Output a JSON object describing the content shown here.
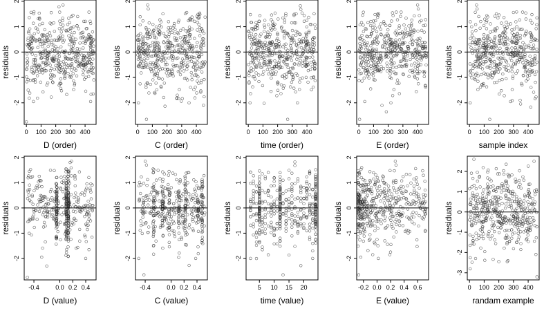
{
  "ink_color": "#000000",
  "point_color": "#333333",
  "chart_data": [
    {
      "type": "scatter",
      "xlabel": "D (order)",
      "ylabel": "residuals",
      "xlim": [
        -15,
        475
      ],
      "ylim": [
        -2.85,
        2.05
      ],
      "xticks": [
        0,
        100,
        200,
        300,
        400
      ],
      "xticklabels": [
        "0",
        "100",
        "200",
        "300",
        "400"
      ],
      "yticks": [
        -2,
        -1,
        0,
        1,
        2
      ],
      "yticklabels": [
        "-2",
        "-1",
        "0",
        "1",
        "2"
      ],
      "hline": 0,
      "x_kind": "uniform",
      "x_range": [
        0,
        460
      ],
      "n_points": 450,
      "sd": 0.72,
      "seed": 11,
      "points": [
        {
          "x": 0,
          "y": -2.75
        },
        {
          "x": 48,
          "y": -1.95
        },
        {
          "x": 222,
          "y": 1.78
        },
        {
          "x": 250,
          "y": 1.85
        },
        {
          "x": 328,
          "y": -1.3
        },
        {
          "x": 438,
          "y": -1.95
        },
        {
          "x": 455,
          "y": -1.65
        },
        {
          "x": 12,
          "y": -1.5
        },
        {
          "x": 90,
          "y": 1.3
        }
      ]
    },
    {
      "type": "scatter",
      "xlabel": "C (order)",
      "ylabel": "residuals",
      "xlim": [
        -15,
        475
      ],
      "ylim": [
        -2.85,
        2.05
      ],
      "xticks": [
        0,
        100,
        200,
        300,
        400
      ],
      "xticklabels": [
        "0",
        "100",
        "200",
        "300",
        "400"
      ],
      "yticks": [
        -2,
        -1,
        0,
        1,
        2
      ],
      "yticklabels": [
        "-2",
        "-1",
        "0",
        "1",
        "2"
      ],
      "hline": 0,
      "x_kind": "uniform",
      "x_range": [
        0,
        460
      ],
      "n_points": 450,
      "sd": 0.72,
      "seed": 23,
      "points": [
        {
          "x": 5,
          "y": -2.0
        },
        {
          "x": 60,
          "y": -2.65
        },
        {
          "x": 68,
          "y": 1.85
        },
        {
          "x": 72,
          "y": 1.7
        },
        {
          "x": 350,
          "y": -2.0
        },
        {
          "x": 270,
          "y": -1.7
        }
      ]
    },
    {
      "type": "scatter",
      "xlabel": "time (order)",
      "ylabel": "residuals",
      "xlim": [
        -15,
        475
      ],
      "ylim": [
        -2.85,
        2.05
      ],
      "xticks": [
        0,
        100,
        200,
        300,
        400
      ],
      "xticklabels": [
        "0",
        "100",
        "200",
        "300",
        "400"
      ],
      "yticks": [
        -2,
        -1,
        0,
        1,
        2
      ],
      "yticklabels": [
        "-2",
        "-1",
        "0",
        "1",
        "2"
      ],
      "hline": 0,
      "x_kind": "uniform",
      "x_range": [
        0,
        460
      ],
      "n_points": 450,
      "sd": 0.72,
      "seed": 37,
      "points": [
        {
          "x": 12,
          "y": -2.0
        },
        {
          "x": 155,
          "y": -1.55
        },
        {
          "x": 268,
          "y": -2.65
        },
        {
          "x": 335,
          "y": -2.0
        },
        {
          "x": 355,
          "y": 1.82
        },
        {
          "x": 358,
          "y": 1.68
        }
      ]
    },
    {
      "type": "scatter",
      "xlabel": "E (order)",
      "ylabel": "residuals",
      "xlim": [
        -15,
        475
      ],
      "ylim": [
        -2.85,
        2.05
      ],
      "xticks": [
        0,
        100,
        200,
        300,
        400
      ],
      "xticklabels": [
        "0",
        "100",
        "200",
        "300",
        "400"
      ],
      "yticks": [
        -2,
        -1,
        0,
        1,
        2
      ],
      "yticklabels": [
        "-2",
        "-1",
        "0",
        "1",
        "2"
      ],
      "hline": 0,
      "x_kind": "uniform",
      "x_range": [
        0,
        460
      ],
      "n_points": 450,
      "sd": 0.72,
      "seed": 41,
      "points": [
        {
          "x": 5,
          "y": -2.65
        },
        {
          "x": 40,
          "y": -1.95
        },
        {
          "x": 218,
          "y": -2.0
        },
        {
          "x": 400,
          "y": 1.85
        },
        {
          "x": 405,
          "y": 1.7
        },
        {
          "x": 80,
          "y": -1.45
        }
      ]
    },
    {
      "type": "scatter",
      "xlabel": "sample index",
      "ylabel": "residuals",
      "xlim": [
        -15,
        475
      ],
      "ylim": [
        -2.85,
        2.05
      ],
      "xticks": [
        0,
        100,
        200,
        300,
        400
      ],
      "xticklabels": [
        "0",
        "100",
        "200",
        "300",
        "400"
      ],
      "yticks": [
        -2,
        -1,
        0,
        1,
        2
      ],
      "yticklabels": [
        "-2",
        "-1",
        "0",
        "1",
        "2"
      ],
      "hline": 0,
      "x_kind": "uniform",
      "x_range": [
        0,
        460
      ],
      "n_points": 450,
      "sd": 0.72,
      "seed": 53,
      "points": [
        {
          "x": 5,
          "y": -2.0
        },
        {
          "x": 48,
          "y": 1.85
        },
        {
          "x": 52,
          "y": 1.7
        },
        {
          "x": 138,
          "y": -2.65
        },
        {
          "x": 280,
          "y": -1.95
        },
        {
          "x": 385,
          "y": 1.3
        }
      ]
    },
    {
      "type": "scatter",
      "xlabel": "D (value)",
      "ylabel": "residuals",
      "xlim": [
        -0.55,
        0.56
      ],
      "ylim": [
        -2.85,
        2.05
      ],
      "xticks": [
        -0.4,
        0.0,
        0.2,
        0.4
      ],
      "xticklabels": [
        "-0.4",
        "0.0",
        "0.2",
        "0.4"
      ],
      "yticks": [
        -2,
        -1,
        0,
        1,
        2
      ],
      "yticklabels": [
        "-2",
        "-1",
        "0",
        "1",
        "2"
      ],
      "hline": 0,
      "x_kind": "clustered",
      "x_range": [
        -0.5,
        0.52
      ],
      "x_clusters": [
        -0.05,
        0.1,
        0.13
      ],
      "n_points": 450,
      "sd": 0.72,
      "seed": 61,
      "points": [
        {
          "x": -0.5,
          "y": -2.75
        },
        {
          "x": -0.28,
          "y": -1.95
        },
        {
          "x": 0.16,
          "y": 1.8
        },
        {
          "x": 0.18,
          "y": 1.85
        },
        {
          "x": 0.4,
          "y": -2.0
        },
        {
          "x": 0.45,
          "y": -1.65
        }
      ]
    },
    {
      "type": "scatter",
      "xlabel": "C (value)",
      "ylabel": "residuals",
      "xlim": [
        -0.55,
        0.56
      ],
      "ylim": [
        -2.85,
        2.05
      ],
      "xticks": [
        -0.4,
        0.0,
        0.2,
        0.4
      ],
      "xticklabels": [
        "-0.4",
        "0.0",
        "0.2",
        "0.4"
      ],
      "yticks": [
        -2,
        -1,
        0,
        1,
        2
      ],
      "yticklabels": [
        "-2",
        "-1",
        "0",
        "1",
        "2"
      ],
      "hline": 0,
      "x_kind": "clustered",
      "x_range": [
        -0.5,
        0.52
      ],
      "x_clusters": [
        -0.27,
        -0.13,
        -0.03,
        0.12,
        0.22,
        0.42,
        0.48
      ],
      "n_points": 450,
      "sd": 0.72,
      "seed": 71,
      "points": [
        {
          "x": -0.5,
          "y": -2.0
        },
        {
          "x": -0.4,
          "y": 1.85
        },
        {
          "x": -0.38,
          "y": 1.7
        },
        {
          "x": -0.42,
          "y": -2.65
        },
        {
          "x": 0.38,
          "y": -2.0
        }
      ]
    },
    {
      "type": "scatter",
      "xlabel": "time (value)",
      "ylabel": "residuals",
      "xlim": [
        0.5,
        24.8
      ],
      "ylim": [
        -2.85,
        2.05
      ],
      "xticks": [
        5,
        10,
        15,
        20
      ],
      "xticklabels": [
        "5",
        "10",
        "15",
        "20"
      ],
      "yticks": [
        -2,
        -1,
        0,
        1,
        2
      ],
      "yticklabels": [
        "-2",
        "-1",
        "0",
        "1",
        "2"
      ],
      "hline": 0,
      "x_kind": "integer",
      "x_range": [
        2,
        24
      ],
      "x_clusters": [
        5,
        12,
        24
      ],
      "n_points": 450,
      "sd": 0.72,
      "seed": 83,
      "points": [
        {
          "x": 2,
          "y": -2.0
        },
        {
          "x": 13,
          "y": -2.65
        },
        {
          "x": 17,
          "y": 1.82
        },
        {
          "x": 17,
          "y": 1.68
        },
        {
          "x": 23,
          "y": -1.7
        }
      ]
    },
    {
      "type": "scatter",
      "xlabel": "E (value)",
      "ylabel": "residuals",
      "xlim": [
        -0.3,
        0.76
      ],
      "ylim": [
        -2.85,
        2.05
      ],
      "xticks": [
        -0.2,
        0.0,
        0.2,
        0.4,
        0.6
      ],
      "xticklabels": [
        "-0.2",
        "0.0",
        "0.2",
        "0.4",
        "0.6"
      ],
      "yticks": [
        -2,
        -1,
        0,
        1,
        2
      ],
      "yticklabels": [
        "-2",
        "-1",
        "0",
        "1",
        "2"
      ],
      "hline": 0,
      "x_kind": "skewed",
      "x_range": [
        -0.28,
        0.72
      ],
      "n_points": 450,
      "sd": 0.72,
      "seed": 97,
      "points": [
        {
          "x": -0.27,
          "y": -2.65
        },
        {
          "x": -0.24,
          "y": -1.95
        },
        {
          "x": 0.02,
          "y": -2.0
        },
        {
          "x": 0.27,
          "y": 1.85
        },
        {
          "x": 0.28,
          "y": 1.7
        },
        {
          "x": 0.7,
          "y": 0.2
        }
      ]
    },
    {
      "type": "scatter",
      "xlabel": "randam example",
      "ylabel": "residuals",
      "xlim": [
        -15,
        475
      ],
      "ylim": [
        -3.35,
        2.75
      ],
      "xticks": [
        0,
        100,
        200,
        300,
        400
      ],
      "xticklabels": [
        "0",
        "100",
        "200",
        "300",
        "400"
      ],
      "yticks": [
        -3,
        -2,
        -1,
        0,
        1,
        2
      ],
      "yticklabels": [
        "-3",
        "-2",
        "-1",
        "0",
        "1",
        "2"
      ],
      "hline": 0,
      "x_kind": "uniform",
      "x_range": [
        0,
        460
      ],
      "n_points": 450,
      "sd": 0.95,
      "seed": 101,
      "points": [
        {
          "x": 5,
          "y": -2.8
        },
        {
          "x": 30,
          "y": 2.6
        },
        {
          "x": 460,
          "y": -3.2
        },
        {
          "x": 440,
          "y": 2.5
        },
        {
          "x": 200,
          "y": -2.45
        },
        {
          "x": 250,
          "y": 2.35
        }
      ]
    }
  ]
}
